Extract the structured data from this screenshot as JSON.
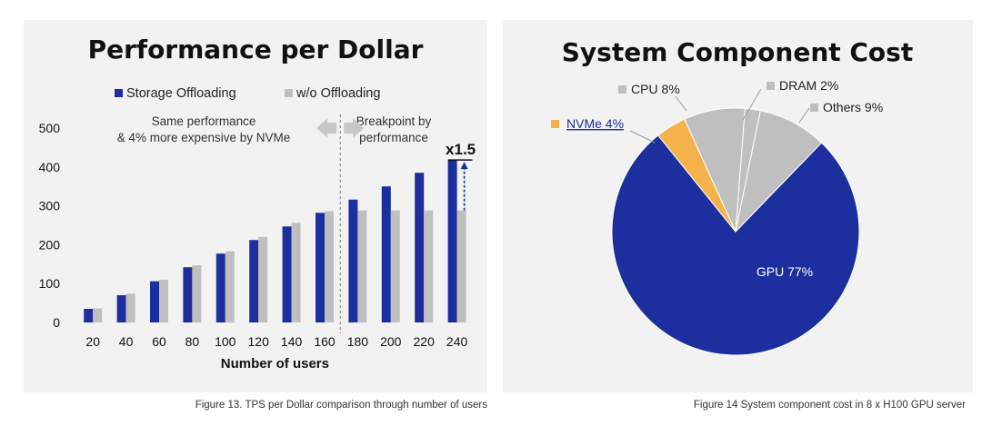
{
  "colors": {
    "storage": "#1d2e9e",
    "wo": "#bfbfbf",
    "gpu": "#1d2e9e",
    "nvme": "#f6b24a",
    "cpu": "#bfbfbf",
    "dram": "#bfbfbf",
    "others": "#bfbfbf",
    "panel": "#f2f2f2",
    "arrow": "#c7c7c7"
  },
  "captions": {
    "left": "Figure 13. TPS per Dollar comparison through number of users",
    "right": "Figure 14 System component cost in 8 x H100 GPU server"
  },
  "chart_data": [
    {
      "type": "bar",
      "title": "Performance per Dollar",
      "xlabel": "Number of users",
      "ylabel": "",
      "ylim": [
        0,
        500
      ],
      "yticks": [
        0,
        100,
        200,
        300,
        400,
        500
      ],
      "categories": [
        "20",
        "40",
        "60",
        "80",
        "100",
        "120",
        "140",
        "160",
        "180",
        "200",
        "220",
        "240"
      ],
      "series": [
        {
          "name": "Storage Offloading",
          "values": [
            35,
            70,
            106,
            142,
            177,
            212,
            247,
            282,
            316,
            350,
            385,
            418
          ]
        },
        {
          "name": "w/o Offloading",
          "values": [
            36,
            74,
            110,
            147,
            183,
            220,
            256,
            286,
            288,
            288,
            288,
            288
          ]
        }
      ],
      "annotations": {
        "left_line1": "Same performance",
        "left_line2": "& 4% more expensive by NVMe",
        "right_line1": "Breakpoint by",
        "right_line2": "performance",
        "multiplier": "x1.5"
      }
    },
    {
      "type": "pie",
      "title": "System Component Cost",
      "slices": [
        {
          "key": "gpu",
          "label": "GPU 77%",
          "value": 77
        },
        {
          "key": "nvme",
          "label": "NVMe 4%",
          "value": 4
        },
        {
          "key": "cpu",
          "label": "CPU 8%",
          "value": 8
        },
        {
          "key": "dram",
          "label": "DRAM 2%",
          "value": 2
        },
        {
          "key": "others",
          "label": "Others 9%",
          "value": 9
        }
      ]
    }
  ]
}
